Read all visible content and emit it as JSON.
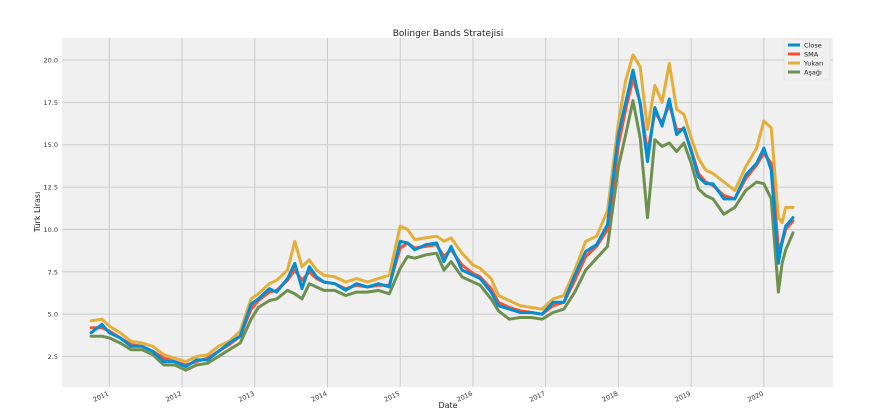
{
  "chart_data": {
    "type": "line",
    "title": "Bolinger Bands Stratejisi",
    "xlabel": "Date",
    "ylabel": "Türk Lirası",
    "ylim": [
      0.7,
      21.3
    ],
    "xlim": [
      2010.35,
      2020.95
    ],
    "x_ticks": [
      "2011",
      "2012",
      "2013",
      "2014",
      "2015",
      "2016",
      "2017",
      "2018",
      "2019",
      "2020"
    ],
    "y_ticks": [
      "2.5",
      "5.0",
      "7.5",
      "10.0",
      "12.5",
      "15.0",
      "17.5",
      "20.0"
    ],
    "grid": true,
    "legend_position": "top-right",
    "x": [
      2010.75,
      2010.9,
      2011.0,
      2011.15,
      2011.3,
      2011.45,
      2011.6,
      2011.75,
      2011.9,
      2012.05,
      2012.2,
      2012.35,
      2012.5,
      2012.65,
      2012.8,
      2012.95,
      2013.05,
      2013.2,
      2013.3,
      2013.45,
      2013.55,
      2013.65,
      2013.75,
      2013.85,
      2013.95,
      2014.1,
      2014.25,
      2014.4,
      2014.55,
      2014.7,
      2014.85,
      2015.0,
      2015.1,
      2015.2,
      2015.35,
      2015.5,
      2015.6,
      2015.7,
      2015.85,
      2016.0,
      2016.1,
      2016.25,
      2016.35,
      2016.5,
      2016.65,
      2016.8,
      2016.95,
      2017.1,
      2017.25,
      2017.4,
      2017.55,
      2017.7,
      2017.85,
      2018.0,
      2018.1,
      2018.2,
      2018.3,
      2018.4,
      2018.5,
      2018.6,
      2018.7,
      2018.8,
      2018.9,
      2019.0,
      2019.1,
      2019.2,
      2019.3,
      2019.45,
      2019.6,
      2019.75,
      2019.9,
      2020.0,
      2020.1,
      2020.2,
      2020.25,
      2020.3,
      2020.4
    ],
    "series": [
      {
        "name": "Close",
        "color": "#008fd5",
        "values": [
          3.9,
          4.4,
          3.9,
          3.6,
          3.1,
          3.1,
          2.8,
          2.2,
          2.2,
          1.9,
          2.3,
          2.3,
          2.8,
          3.3,
          3.7,
          5.6,
          5.9,
          6.5,
          6.3,
          7.1,
          8.0,
          6.5,
          7.8,
          7.2,
          6.9,
          6.8,
          6.4,
          6.8,
          6.6,
          6.8,
          6.6,
          9.3,
          9.2,
          8.8,
          9.1,
          9.2,
          8.1,
          9.0,
          7.6,
          7.3,
          7.1,
          6.3,
          5.5,
          5.3,
          5.1,
          5.1,
          5.0,
          5.7,
          5.7,
          7.3,
          8.7,
          9.1,
          10.3,
          15.6,
          17.5,
          19.4,
          17.4,
          14.0,
          17.2,
          16.1,
          17.7,
          15.6,
          16.0,
          14.6,
          13.1,
          12.7,
          12.7,
          11.8,
          11.8,
          13.2,
          13.9,
          14.8,
          13.5,
          8.0,
          9.3,
          10.2,
          10.7
        ]
      },
      {
        "name": "SMA",
        "color": "#fc4f30",
        "values": [
          4.2,
          4.2,
          4.0,
          3.6,
          3.2,
          3.1,
          2.8,
          2.4,
          2.2,
          2.0,
          2.2,
          2.4,
          2.8,
          3.2,
          3.7,
          5.3,
          5.8,
          6.3,
          6.4,
          7.0,
          7.6,
          7.0,
          7.5,
          7.1,
          6.9,
          6.8,
          6.5,
          6.7,
          6.6,
          6.7,
          6.7,
          8.9,
          9.2,
          8.9,
          9.0,
          9.1,
          8.4,
          8.8,
          7.9,
          7.4,
          7.2,
          6.5,
          5.7,
          5.4,
          5.2,
          5.1,
          5.0,
          5.5,
          5.7,
          7.0,
          8.4,
          9.0,
          10.0,
          15.0,
          17.1,
          18.9,
          17.5,
          14.5,
          16.9,
          16.3,
          17.4,
          15.9,
          15.9,
          14.7,
          13.3,
          12.8,
          12.6,
          12.0,
          11.8,
          13.0,
          13.8,
          14.5,
          13.9,
          8.9,
          9.2,
          10.0,
          10.5
        ]
      },
      {
        "name": "Yukarı",
        "color": "#e5ae38",
        "values": [
          4.6,
          4.7,
          4.3,
          3.9,
          3.4,
          3.3,
          3.1,
          2.6,
          2.4,
          2.2,
          2.5,
          2.6,
          3.1,
          3.4,
          4.0,
          5.9,
          6.2,
          6.8,
          7.0,
          7.6,
          9.3,
          7.8,
          8.2,
          7.6,
          7.3,
          7.2,
          6.9,
          7.1,
          6.9,
          7.1,
          7.3,
          10.2,
          10.0,
          9.4,
          9.5,
          9.6,
          9.3,
          9.5,
          8.6,
          7.9,
          7.7,
          7.1,
          6.1,
          5.8,
          5.5,
          5.4,
          5.3,
          5.9,
          6.1,
          7.6,
          9.3,
          9.6,
          11.1,
          16.3,
          18.8,
          20.3,
          19.6,
          15.9,
          18.5,
          17.5,
          19.8,
          17.1,
          16.8,
          15.4,
          14.2,
          13.5,
          13.3,
          12.8,
          12.3,
          13.7,
          14.8,
          16.4,
          16.0,
          10.7,
          10.4,
          11.3,
          11.3
        ]
      },
      {
        "name": "Aşağı",
        "color": "#6d904f",
        "values": [
          3.7,
          3.7,
          3.6,
          3.3,
          2.9,
          2.9,
          2.6,
          2.0,
          2.0,
          1.7,
          2.0,
          2.1,
          2.5,
          2.9,
          3.3,
          4.7,
          5.4,
          5.8,
          5.9,
          6.4,
          6.2,
          5.9,
          6.8,
          6.6,
          6.4,
          6.4,
          6.1,
          6.3,
          6.3,
          6.4,
          6.2,
          7.7,
          8.4,
          8.3,
          8.5,
          8.6,
          7.6,
          8.1,
          7.2,
          6.9,
          6.7,
          5.9,
          5.2,
          4.7,
          4.8,
          4.8,
          4.7,
          5.1,
          5.3,
          6.3,
          7.6,
          8.3,
          9.0,
          13.7,
          15.6,
          17.6,
          15.4,
          10.7,
          15.3,
          14.9,
          15.1,
          14.6,
          15.1,
          13.9,
          12.4,
          12.0,
          11.8,
          10.9,
          11.3,
          12.3,
          12.8,
          12.7,
          11.8,
          6.3,
          8.0,
          8.8,
          9.8
        ]
      }
    ]
  }
}
